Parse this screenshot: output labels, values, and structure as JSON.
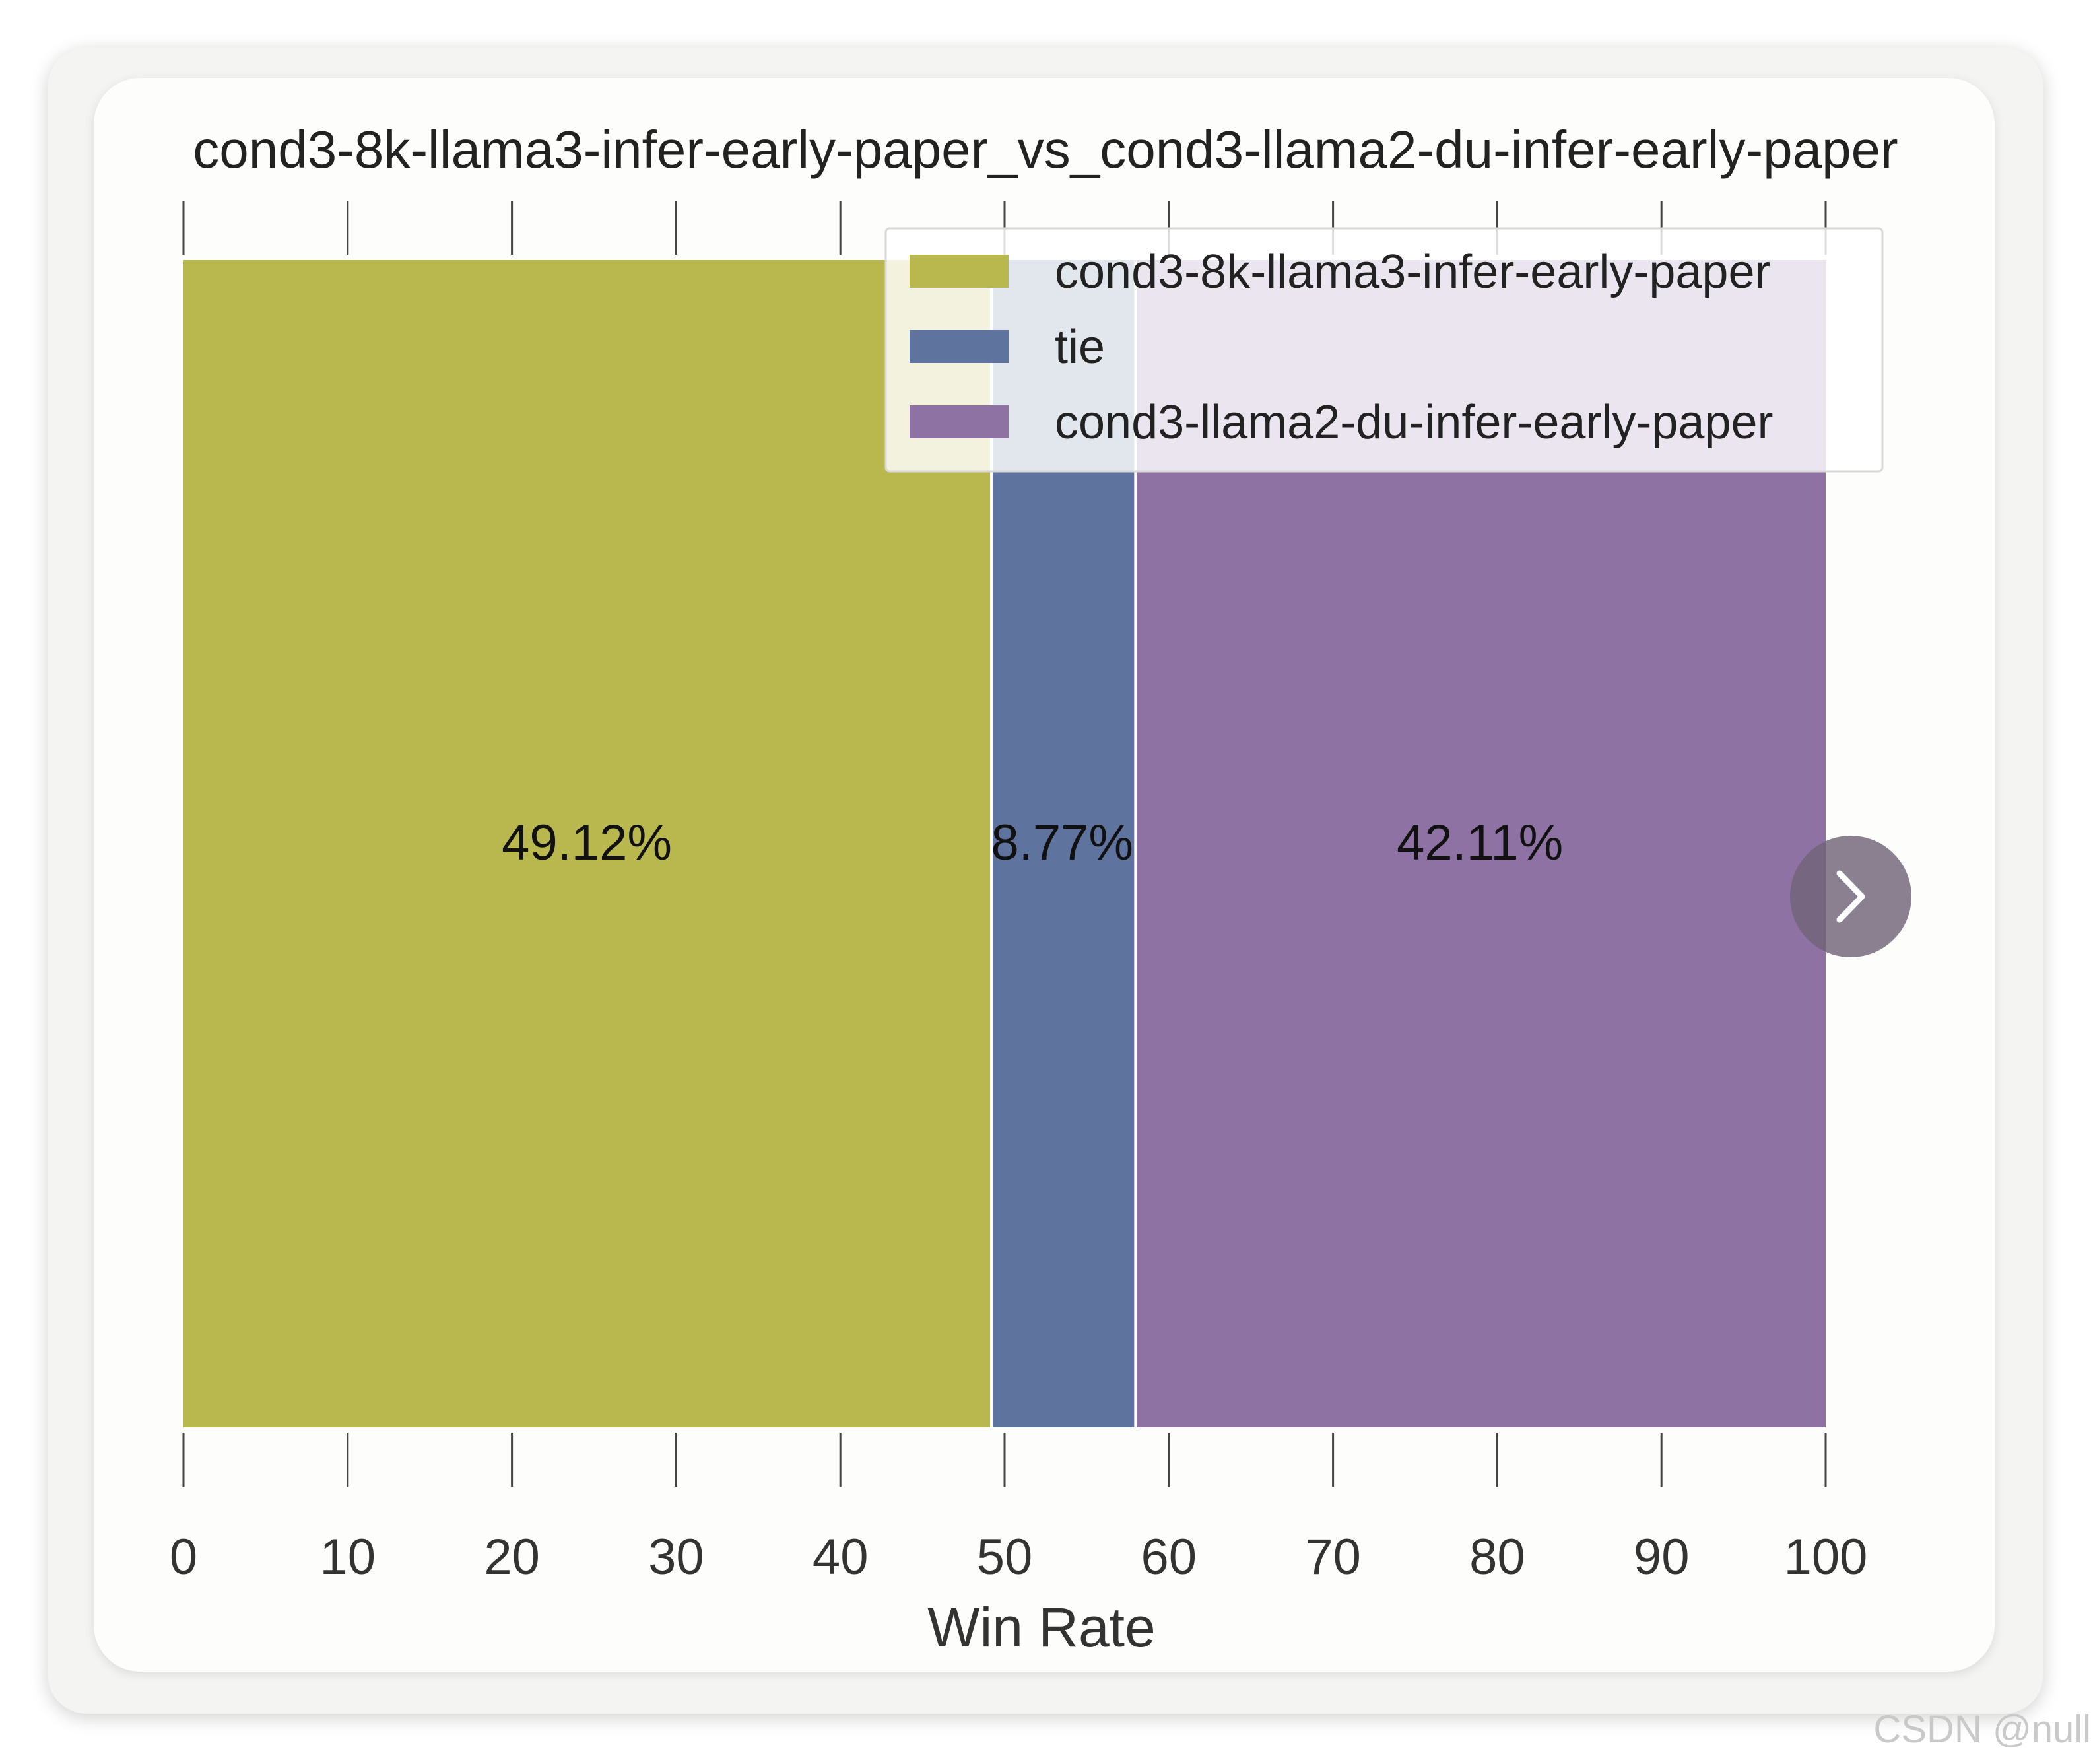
{
  "chart_data": {
    "type": "bar",
    "orientation": "horizontal-stacked",
    "title": "cond3-8k-llama3-infer-early-paper_vs_cond3-llama2-du-infer-early-paper",
    "xlabel": "Win Rate",
    "ylabel": "",
    "xlim": [
      0,
      100
    ],
    "xticks": [
      "0",
      "10",
      "20",
      "30",
      "40",
      "50",
      "60",
      "70",
      "80",
      "90",
      "100"
    ],
    "grid": false,
    "legend_position": "top-right",
    "series": [
      {
        "name": "cond3-8k-llama3-infer-early-paper",
        "value": 49.12,
        "label": "49.12%",
        "color": "#b9b84f"
      },
      {
        "name": "tie",
        "value": 8.77,
        "label": "8.77%",
        "color": "#5e739d"
      },
      {
        "name": "cond3-llama2-du-infer-early-paper",
        "value": 42.11,
        "label": "42.11%",
        "color": "#8e72a4"
      }
    ]
  },
  "ui": {
    "next_icon": "chevron-right-icon",
    "watermark": "CSDN @null"
  }
}
